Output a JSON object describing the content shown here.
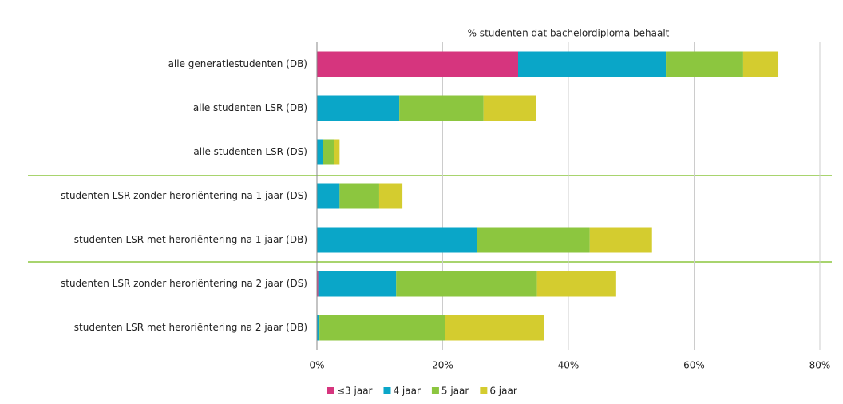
{
  "chart_data": {
    "type": "stacked-bar-horizontal",
    "title": "% studenten dat bachelordiploma behaalt",
    "categories": [
      "alle generatiestudenten (DB)",
      "alle studenten LSR (DB)",
      "alle studenten LSR (DS)",
      "studenten LSR zonder heroriëntering na 1 jaar (DS)",
      "studenten LSR met heroriëntering na 1 jaar (DB)",
      "studenten LSR zonder heroriëntering na 2 jaar (DS)",
      "studenten LSR met heroriëntering na 2 jaar (DB)"
    ],
    "series": [
      {
        "name": "≤3 jaar",
        "color": "#d6357e",
        "values": [
          32.0,
          0,
          0,
          0,
          0,
          0.2,
          0
        ]
      },
      {
        "name": "4 jaar",
        "color": "#0aa6c8",
        "values": [
          23.5,
          13.1,
          0.9,
          3.6,
          25.4,
          12.4,
          0.4
        ]
      },
      {
        "name": "5 jaar",
        "color": "#8cc63f",
        "values": [
          12.3,
          13.4,
          1.8,
          6.3,
          18.0,
          22.4,
          20.0
        ]
      },
      {
        "name": "6 jaar",
        "color": "#d4cc2f",
        "values": [
          5.6,
          8.4,
          0.9,
          3.7,
          9.9,
          12.6,
          15.7
        ]
      }
    ],
    "xlim": [
      0,
      80
    ],
    "xticks": [
      {
        "value": 0,
        "label": "0%"
      },
      {
        "value": 20,
        "label": "20%"
      },
      {
        "value": 40,
        "label": "40%"
      },
      {
        "value": 60,
        "label": "60%"
      },
      {
        "value": 80,
        "label": "80%"
      }
    ],
    "grid": true,
    "legend": "bottom"
  }
}
